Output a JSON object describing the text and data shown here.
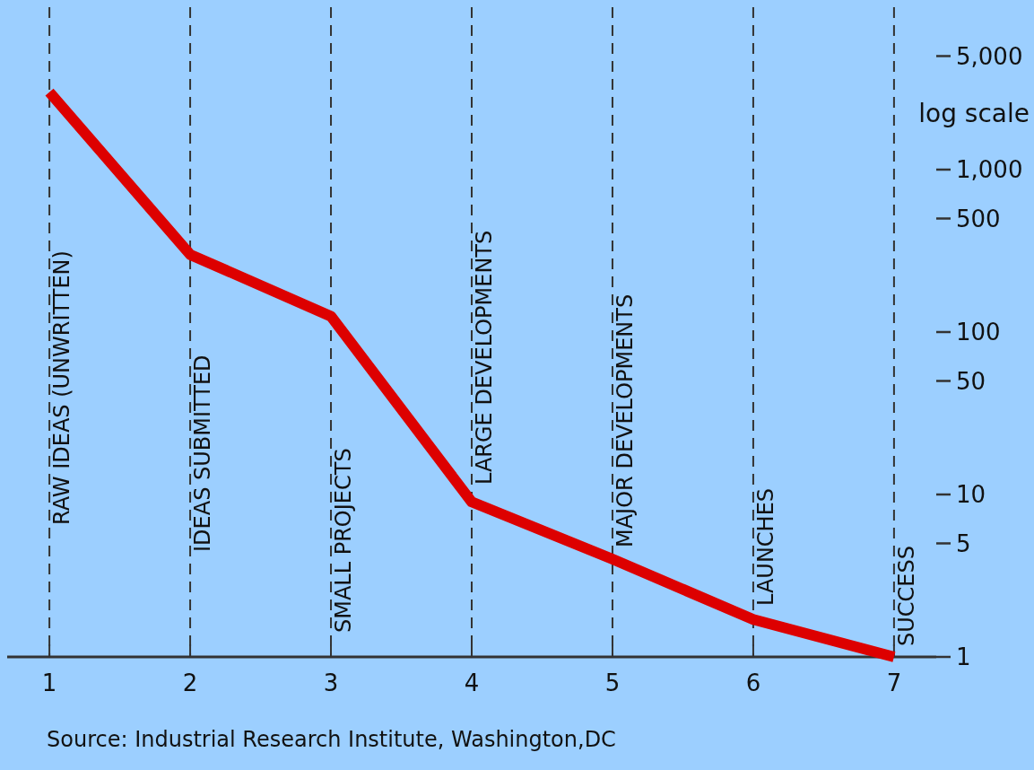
{
  "chart_data": {
    "type": "line",
    "ylabel": "log scale",
    "x": [
      1,
      2,
      3,
      4,
      5,
      6,
      7
    ],
    "series": [
      {
        "color": "#dd0000",
        "values": [
          3000,
          300,
          125,
          9,
          4,
          1.7,
          1
        ]
      }
    ],
    "xlim": [
      0.7,
      7.3
    ],
    "xticks": [
      1,
      2,
      3,
      4,
      5,
      6,
      7
    ],
    "ylim": [
      1,
      10000
    ],
    "yticks": [
      {
        "value": 5000,
        "label": "5,000"
      },
      {
        "value": 1000,
        "label": "1,000"
      },
      500,
      100,
      50,
      10,
      5,
      1
    ],
    "log": "y",
    "grid": "x",
    "marker": "none",
    "line_style": "solid",
    "annotations": [
      "RAW IDEAS (UNWRITTEN)",
      "IDEAS SUBMITTED",
      "SMALL PROJECTS",
      "LARGE DEVELOPMENTS",
      "MAJOR DEVELOPMENTS",
      "LAUNCHES",
      "SUCCESS",
      "Source: Industrial Research Institute, Washington,DC"
    ]
  }
}
